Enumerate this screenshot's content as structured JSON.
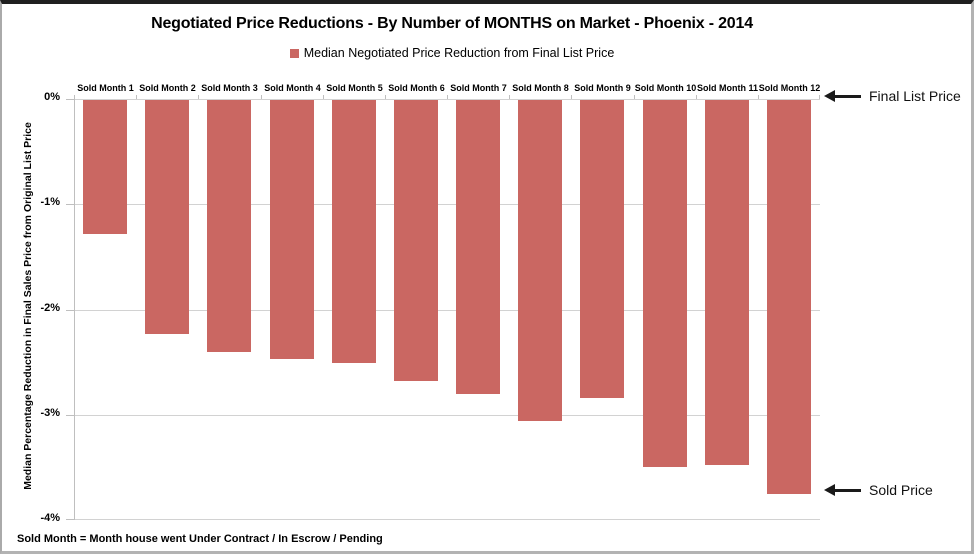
{
  "title": "Negotiated Price Reductions - By Number of MONTHS on Market - Phoenix - 2014",
  "legend": {
    "label": "Median Negotiated Price Reduction from Final List Price"
  },
  "annotations": {
    "top": "Final List Price",
    "bottom": "Sold Price"
  },
  "footnote": "Sold Month = Month house went Under Contract / In Escrow / Pending",
  "y_axis": {
    "title": "Median Percentage Reduction in Final Sales Price from Original List Price",
    "tick_labels": [
      "0%",
      "-1%",
      "-2%",
      "-3%",
      "-4%"
    ]
  },
  "colors": {
    "bar": "#CA6762",
    "legend_swatch": "#CA6762",
    "gridline": "#D2D2D2",
    "axis": "#BFBFBF",
    "arrow": "#1A1A1A"
  },
  "chart_data": {
    "type": "bar",
    "title": "Negotiated Price Reductions - By Number of MONTHS on Market - Phoenix - 2014",
    "categories": [
      "Sold Month 1",
      "Sold Month 2",
      "Sold Month 3",
      "Sold Month 4",
      "Sold Month 5",
      "Sold Month 6",
      "Sold Month 7",
      "Sold Month 8",
      "Sold Month 9",
      "Sold Month 10",
      "Sold Month 11",
      "Sold Month 12"
    ],
    "series": [
      {
        "name": "Median Negotiated Price Reduction from Final List Price",
        "values": [
          -1.27,
          -2.22,
          -2.39,
          -2.46,
          -2.5,
          -2.67,
          -2.79,
          -3.05,
          -2.83,
          -3.49,
          -3.47,
          -3.74
        ]
      }
    ],
    "xlabel": "",
    "ylabel": "Median Percentage Reduction in Final Sales Price from Original List Price",
    "ylim": [
      -4,
      0
    ],
    "y_tick_interval": 1,
    "y_tick_format": "percent",
    "grid": true,
    "legend_position": "top",
    "annotations": [
      {
        "label": "Final List Price",
        "at_value": 0,
        "arrow": "left"
      },
      {
        "label": "Sold Price",
        "at_value": -3.74,
        "arrow": "left"
      }
    ]
  }
}
